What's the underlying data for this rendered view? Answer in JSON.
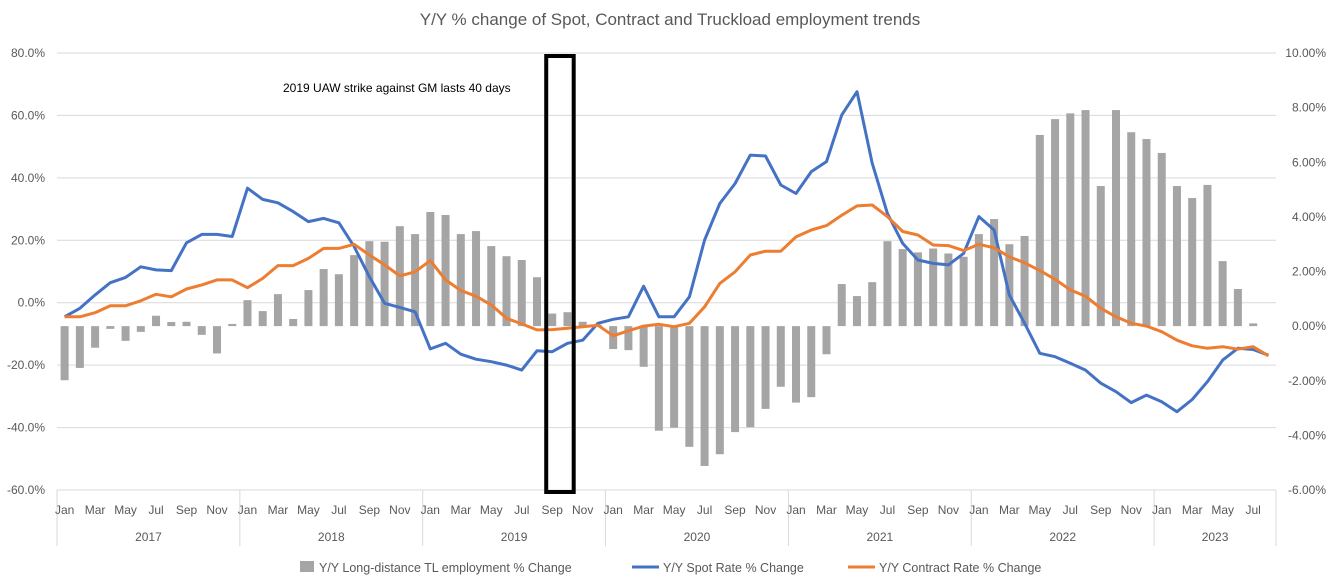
{
  "chart_data": {
    "type": "bar+line",
    "title": "Y/Y % change of Spot, Contract and Truckload employment trends",
    "annotation": "2019 UAW strike against GM lasts 40 days",
    "annotation_box_months": [
      "2019-Sep",
      "2019-Oct"
    ],
    "years": [
      "2017",
      "2018",
      "2019",
      "2020",
      "2021",
      "2022",
      "2023"
    ],
    "month_tick_labels": [
      "Jan",
      "Mar",
      "May",
      "Jul",
      "Sep",
      "Nov"
    ],
    "start": "2017-Jan",
    "end": "2023-Aug",
    "left_axis": {
      "min": -60,
      "max": 80,
      "step": 20,
      "format": "0.0%",
      "ticks": [
        "80.0%",
        "60.0%",
        "40.0%",
        "20.0%",
        "0.0%",
        "-20.0%",
        "-40.0%",
        "-60.0%"
      ]
    },
    "right_axis": {
      "min": -6,
      "max": 10,
      "step": 2,
      "format": "0.00%",
      "ticks": [
        "10.00%",
        "8.00%",
        "6.00%",
        "4.00%",
        "2.00%",
        "0.00%",
        "-2.00%",
        "-4.00%",
        "-6.00%"
      ]
    },
    "grid": true,
    "legend_position": "bottom",
    "series": [
      {
        "name": "Y/Y Long-distance TL employment % Change",
        "kind": "bar",
        "axis": "right",
        "color": "#a5a5a5",
        "values": [
          -1.98,
          -1.53,
          -0.79,
          -0.1,
          -0.54,
          -0.21,
          0.38,
          0.15,
          0.16,
          -0.32,
          -1.0,
          0.08,
          0.95,
          0.55,
          1.17,
          0.26,
          1.32,
          2.09,
          1.9,
          2.6,
          3.11,
          3.09,
          3.66,
          3.37,
          4.18,
          4.07,
          3.37,
          3.48,
          2.93,
          2.56,
          2.42,
          1.79,
          0.46,
          0.51,
          0.16,
          0.05,
          -0.84,
          -0.88,
          -1.49,
          -3.83,
          -3.72,
          -4.42,
          -5.12,
          -4.69,
          -3.88,
          -3.7,
          -3.03,
          -2.22,
          -2.8,
          -2.6,
          -1.03,
          1.54,
          1.1,
          1.61,
          3.11,
          2.82,
          2.7,
          2.84,
          2.66,
          2.54,
          3.37,
          3.92,
          3.0,
          3.3,
          7.0,
          7.58,
          7.79,
          7.91,
          5.13,
          7.91,
          7.1,
          6.85,
          6.34,
          5.13,
          4.69,
          5.17,
          2.38,
          1.36,
          0.1,
          null
        ]
      },
      {
        "name": "Y/Y Spot Rate % Change",
        "kind": "line",
        "axis": "left",
        "color": "#4472c4",
        "values": [
          -4.5,
          -1.8,
          2.5,
          6.4,
          8.1,
          11.5,
          10.5,
          10.3,
          19.2,
          21.9,
          21.9,
          21.2,
          36.7,
          33.1,
          32.0,
          29.2,
          26.0,
          27.0,
          25.6,
          18.0,
          8.3,
          -0.2,
          -1.5,
          -2.9,
          -14.8,
          -13.0,
          -16.5,
          -18.1,
          -18.9,
          -20.0,
          -21.6,
          -15.4,
          -15.7,
          -13.0,
          -12.0,
          -6.6,
          -5.3,
          -4.5,
          5.3,
          -4.5,
          -4.5,
          1.9,
          20.1,
          31.8,
          38.2,
          47.3,
          47.0,
          37.7,
          35.0,
          42.0,
          45.2,
          60.1,
          67.6,
          44.7,
          28.6,
          19.0,
          13.7,
          12.6,
          12.1,
          15.8,
          27.6,
          23.3,
          2.5,
          -6.6,
          -16.2,
          -17.3,
          -19.4,
          -21.6,
          -25.8,
          -28.5,
          -32.0,
          -29.6,
          -31.7,
          -34.9,
          -31.0,
          -25.3,
          -18.4,
          -14.6,
          -15.0,
          -16.8
        ]
      },
      {
        "name": "Y/Y Contract Rate % Change",
        "kind": "line",
        "axis": "left",
        "color": "#ed7d31",
        "values": [
          -4.5,
          -4.5,
          -3.2,
          -1.0,
          -1.0,
          0.6,
          2.7,
          1.9,
          4.4,
          5.7,
          7.3,
          7.3,
          4.8,
          7.8,
          11.9,
          11.9,
          14.2,
          17.4,
          17.4,
          18.7,
          15.3,
          12.1,
          8.6,
          9.9,
          13.5,
          7.3,
          3.9,
          2.1,
          -0.7,
          -5.0,
          -6.8,
          -8.7,
          -8.6,
          -8.2,
          -7.7,
          -7.2,
          -10.6,
          -9.0,
          -7.5,
          -6.9,
          -7.7,
          -6.6,
          -1.3,
          6.2,
          9.9,
          15.3,
          16.5,
          16.5,
          21.1,
          23.3,
          24.7,
          28.0,
          31.0,
          31.3,
          27.6,
          22.8,
          21.7,
          18.5,
          18.3,
          16.7,
          18.7,
          17.6,
          14.7,
          12.8,
          10.3,
          7.5,
          4.1,
          2.1,
          -1.8,
          -4.5,
          -6.6,
          -7.5,
          -9.3,
          -12.0,
          -13.8,
          -14.6,
          -14.1,
          -14.9,
          -14.1,
          -17.0
        ]
      }
    ]
  }
}
